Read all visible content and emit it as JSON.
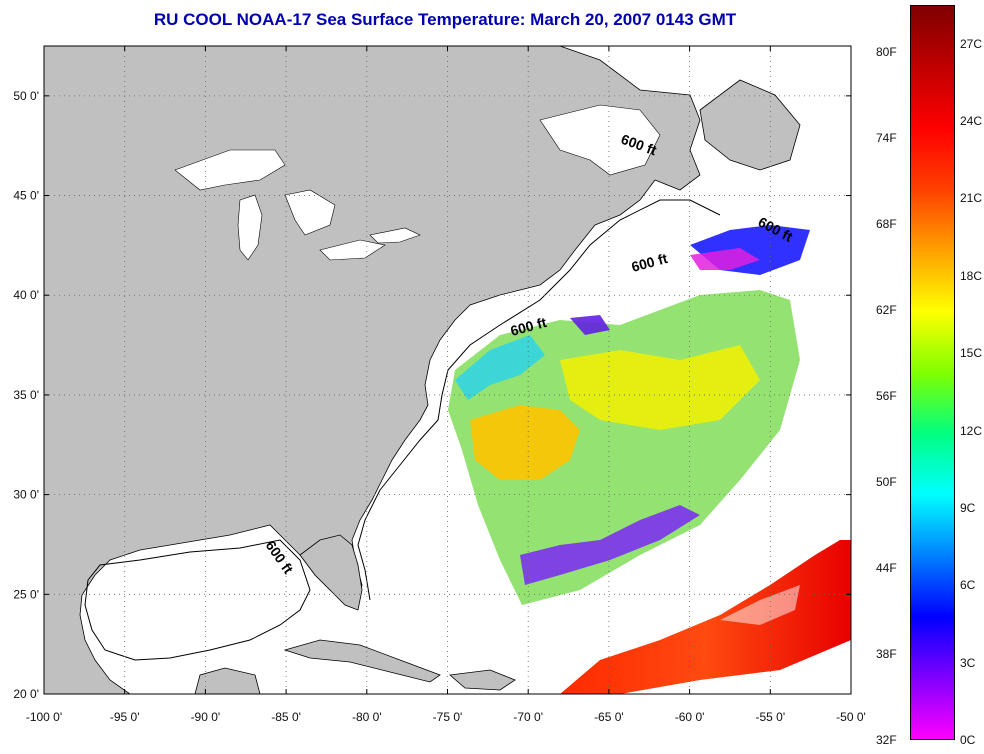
{
  "title": "RU COOL  NOAA-17  Sea Surface Temperature:  March 20, 2007 0143 GMT",
  "map": {
    "lon_ticks": [
      "-100 0'",
      "-95 0'",
      "-90 0'",
      "-85 0'",
      "-80 0'",
      "-75 0'",
      "-70 0'",
      "-65 0'",
      "-60 0'",
      "-55 0'",
      "-50 0'"
    ],
    "lat_ticks": [
      "50 0'",
      "45 0'",
      "40 0'",
      "35 0'",
      "30 0'",
      "25 0'",
      "20 0'"
    ],
    "lon_range": [
      -100,
      -50
    ],
    "lat_range": [
      20,
      52.5
    ],
    "land_color": "#c0c0c0",
    "water_color": "#ffffff",
    "contour_labels": [
      "600 ft",
      "600 ft",
      "600 ft",
      "600 ft",
      "600 ft"
    ]
  },
  "colorbar": {
    "fahrenheit_labels": [
      "80F",
      "74F",
      "68F",
      "62F",
      "56F",
      "50F",
      "44F",
      "38F",
      "32F"
    ],
    "celsius_labels": [
      "27C",
      "24C",
      "21C",
      "18C",
      "15C",
      "12C",
      "9C",
      "6C",
      "3C",
      "0C"
    ],
    "range_c": [
      0,
      28.5
    ],
    "colors": [
      "#ff00ff",
      "#8000ff",
      "#0000ff",
      "#0080ff",
      "#00ffff",
      "#00ff80",
      "#80ff00",
      "#ffff00",
      "#ffa000",
      "#ff4000",
      "#ff0000",
      "#c00000",
      "#800000"
    ]
  }
}
